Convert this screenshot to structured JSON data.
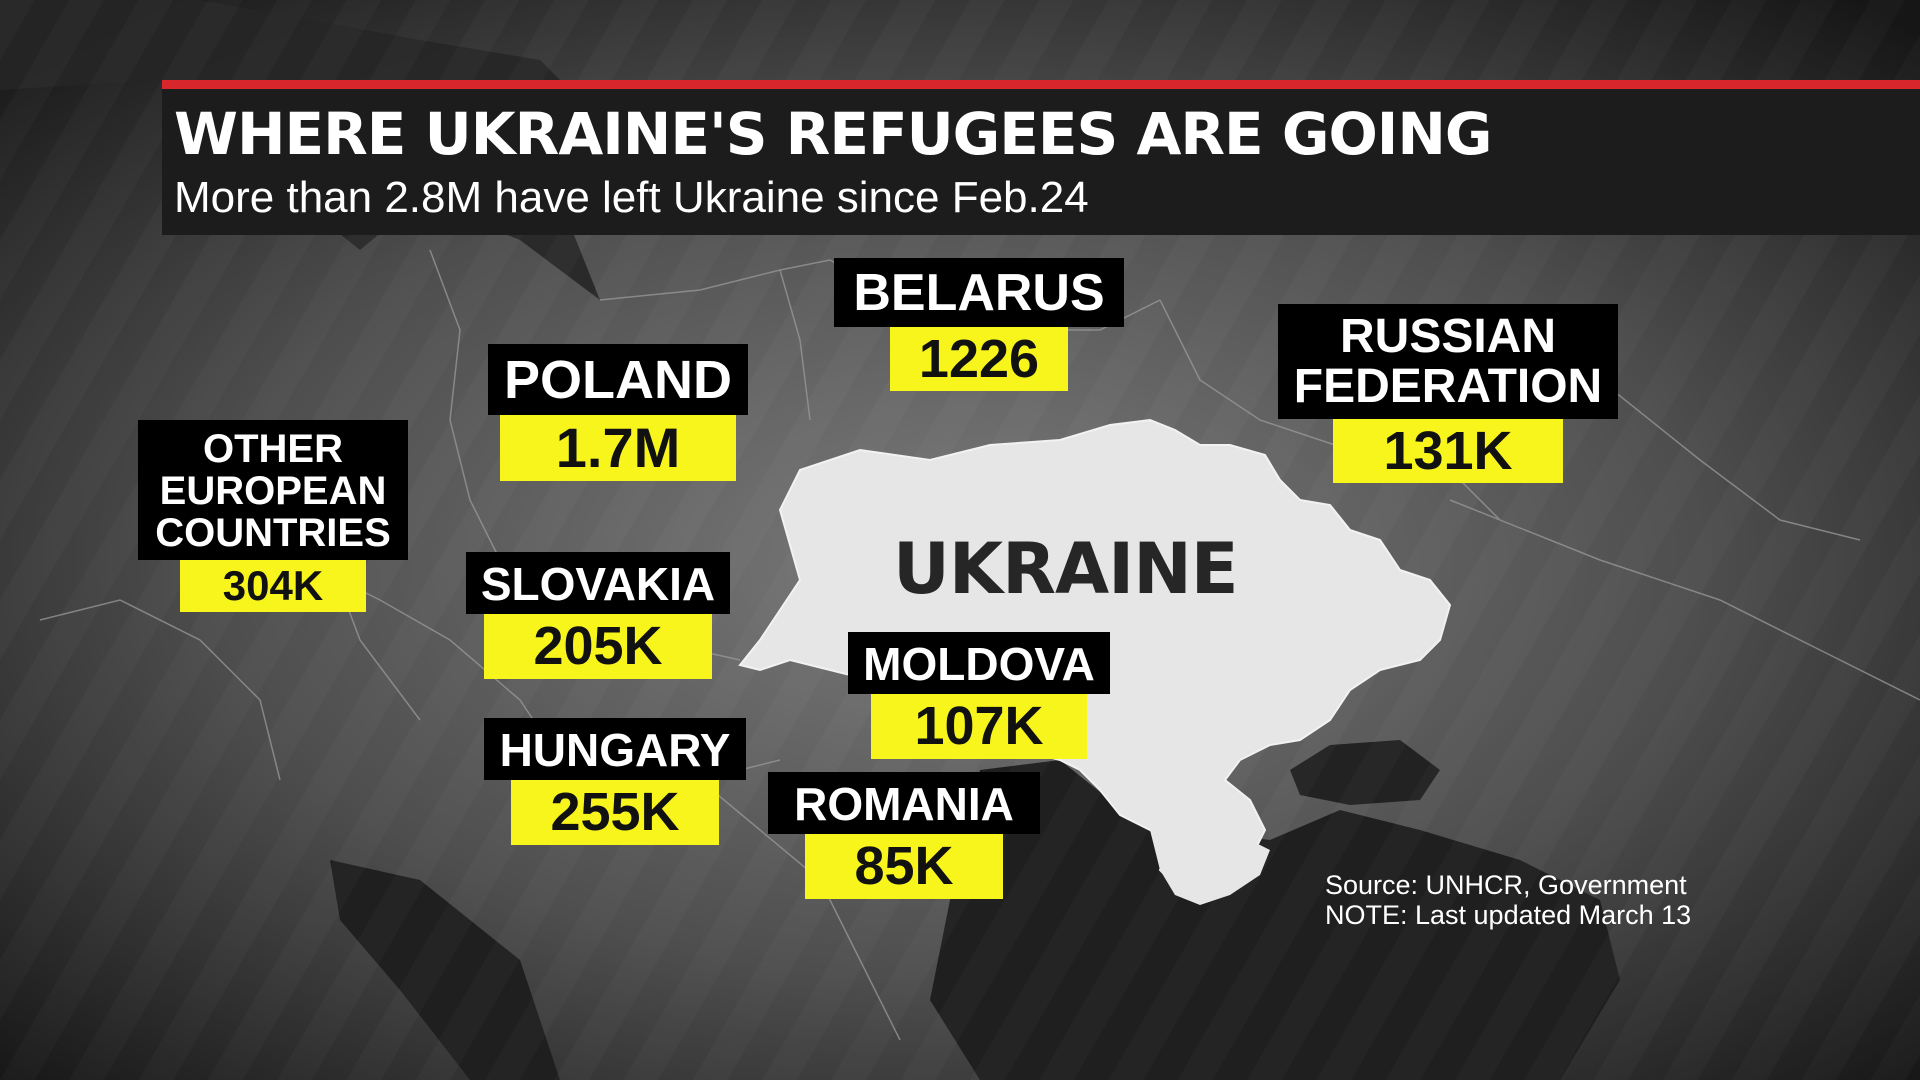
{
  "header": {
    "title": "WHERE UKRAINE'S REFUGEES ARE GOING",
    "subtitle": "More than 2.8M have left Ukraine since Feb.24"
  },
  "map": {
    "center_country": "UKRAINE",
    "colors": {
      "background": "#2a2a2a",
      "land": "#5a5a5a",
      "ukraine": "#e6e6e6",
      "borders": "#8a8a8a",
      "label_name_bg": "#000000",
      "label_value_bg": "#f8f51c",
      "accent_bar": "#d7262c"
    },
    "destinations": [
      {
        "name": "POLAND",
        "value": "1.7M"
      },
      {
        "name": "BELARUS",
        "value": "1226"
      },
      {
        "name": "RUSSIAN FEDERATION",
        "value": "131K"
      },
      {
        "name": "OTHER EUROPEAN COUNTRIES",
        "value": "304K"
      },
      {
        "name": "SLOVAKIA",
        "value": "205K"
      },
      {
        "name": "MOLDOVA",
        "value": "107K"
      },
      {
        "name": "HUNGARY",
        "value": "255K"
      },
      {
        "name": "ROMANIA",
        "value": "85K"
      }
    ]
  },
  "footer": {
    "source": "Source: UNHCR, Government",
    "note": "NOTE: Last updated March 13"
  }
}
